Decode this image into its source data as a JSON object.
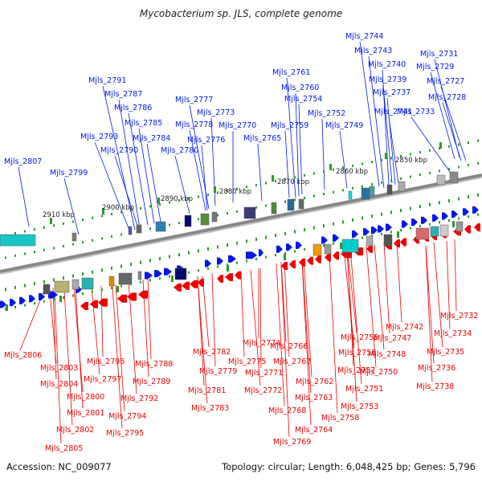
{
  "title": "Mycobacterium sp. JLS, complete genome",
  "footer": {
    "accession": "Accession: NC_009077",
    "summary": "Topology: circular; Length: 6,048,425 bp; Genes: 5,796"
  },
  "colors": {
    "forward": "#0018e8",
    "reverse": "#ee0000",
    "backbone": "#888888",
    "tick_dot": "#2a9a2a",
    "background": "#ffffff"
  },
  "ruler_labels": [
    "2850 kbp",
    "2860 kbp",
    "2870 kbp",
    "2880 kbp",
    "2890 kbp",
    "2900 kbp",
    "2910 kbp"
  ],
  "forward_gene_labels": [
    "Mjls_2744",
    "Mjls_2743",
    "Mjls_2731",
    "Mjls_2740",
    "Mjls_2729",
    "Mjls_2739",
    "Mjls_2727",
    "Mjls_2761",
    "Mjls_2737",
    "Mjls_2728",
    "Mjls_2760",
    "Mjls_2791",
    "Mjls_2754",
    "Mjls_2787",
    "Mjls_2741",
    "Mjls_2733",
    "Mjls_2777",
    "Mjls_2752",
    "Mjls_2786",
    "Mjls_2773",
    "Mjls_2785",
    "Mjls_2778",
    "Mjls_2770",
    "Mjls_2759",
    "Mjls_2749",
    "Mjls_2793",
    "Mjls_2784",
    "Mjls_2776",
    "Mjls_2765",
    "Mjls_2790",
    "Mjls_2780",
    "Mjls_2807",
    "Mjls_2799"
  ],
  "reverse_gene_labels": [
    "Mjls_2732",
    "Mjls_2742",
    "Mjls_2734",
    "Mjls_2747",
    "Mjls_2774",
    "Mjls_2755",
    "Mjls_2782",
    "Mjls_2735",
    "Mjls_2766",
    "Mjls_2806",
    "Mjls_2756",
    "Mjls_2748",
    "Mjls_2775",
    "Mjls_2796",
    "Mjls_2788",
    "Mjls_2767",
    "Mjls_2803",
    "Mjls_2736",
    "Mjls_2779",
    "Mjls_2771",
    "Mjls_2757",
    "Mjls_2750",
    "Mjls_2797",
    "Mjls_2762",
    "Mjls_2789",
    "Mjls_2804",
    "Mjls_2738",
    "Mjls_2772",
    "Mjls_2781",
    "Mjls_2751",
    "Mjls_2763",
    "Mjls_2800",
    "Mjls_2792",
    "Mjls_2753",
    "Mjls_2768",
    "Mjls_2783",
    "Mjls_2801",
    "Mjls_2794",
    "Mjls_2758",
    "Mjls_2764",
    "Mjls_2802",
    "Mjls_2795",
    "Mjls_2769",
    "Mjls_2805"
  ]
}
